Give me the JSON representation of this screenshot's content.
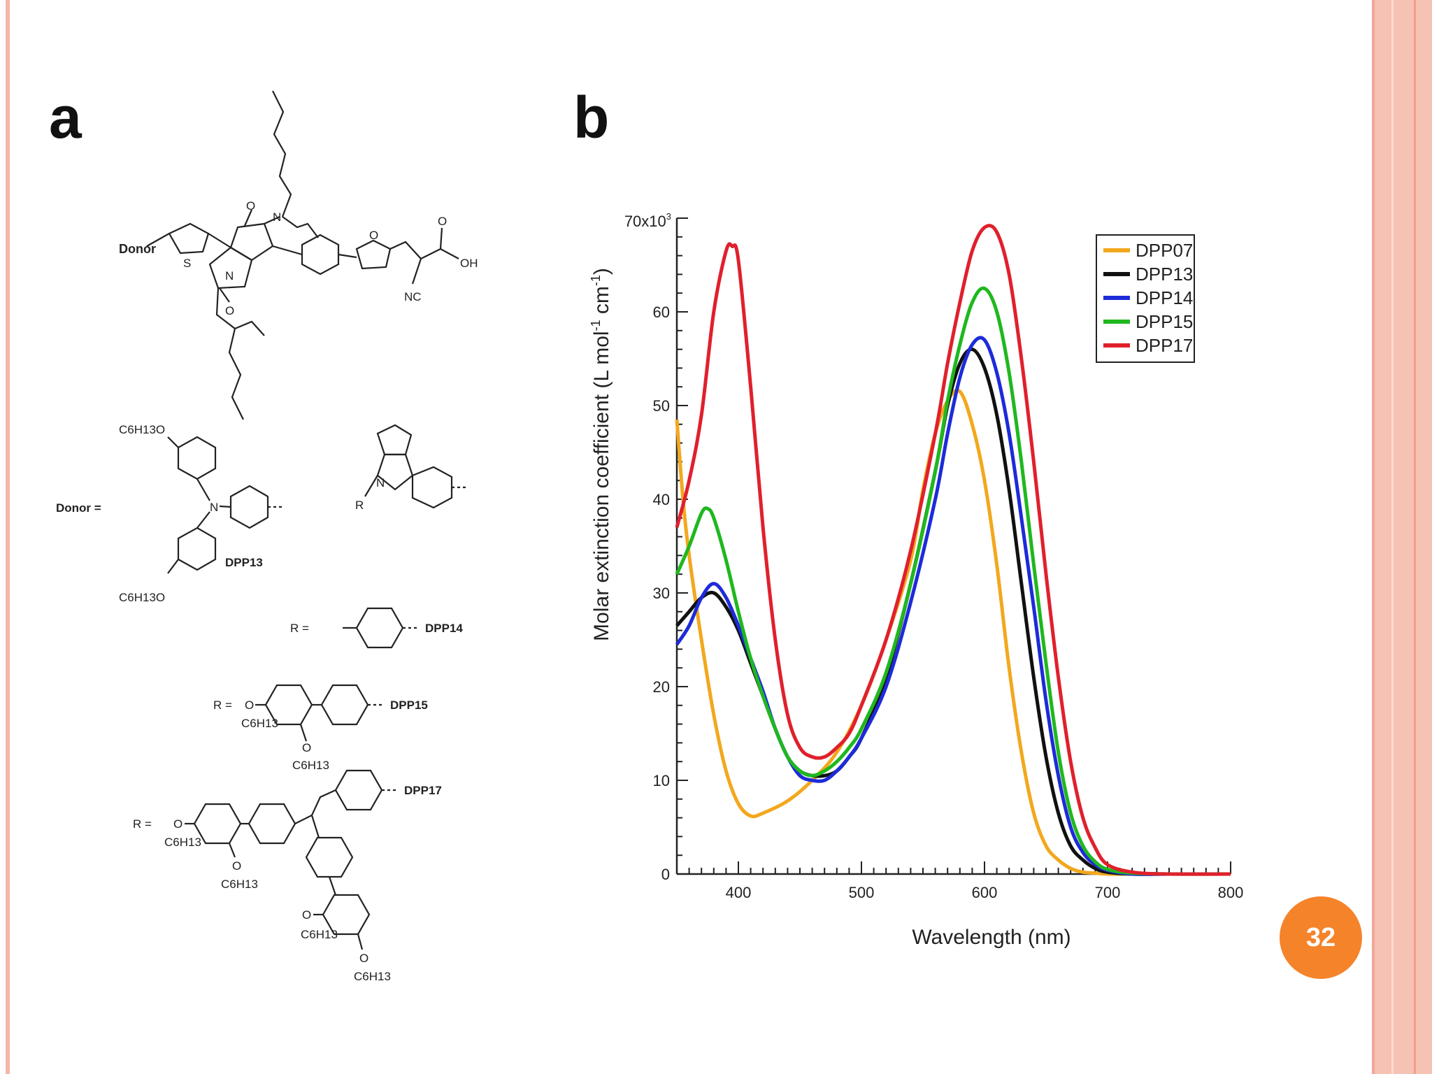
{
  "panels": {
    "a_label": "a",
    "b_label": "b"
  },
  "page_number": "32",
  "structure": {
    "donor_label": "Donor",
    "donor_eq": "Donor =",
    "o_label": "O",
    "n_label": "N",
    "s_label": "S",
    "nc_label": "NC",
    "oh_label": "OH",
    "r_label": "R",
    "hexyloxy": "C6H13O",
    "c6h13": "C6H13",
    "dpp13": "DPP13",
    "r_eq": "R =",
    "dpp14": "DPP14",
    "dpp15": "DPP15",
    "dpp17": "DPP17"
  },
  "chart_data": {
    "type": "line",
    "xlabel": "Wavelength (nm)",
    "ylabel": "Molar extinction coefficient (L mol-1 cm-1)",
    "y_multiplier_label": "70x10",
    "y_multiplier_exp": "3",
    "xlim": [
      350,
      800
    ],
    "ylim": [
      0,
      70
    ],
    "xticks": [
      "400",
      "500",
      "600",
      "700",
      "800"
    ],
    "yticks": [
      "0",
      "10",
      "20",
      "30",
      "40",
      "50",
      "60"
    ],
    "legend_position": "top-right",
    "series": [
      {
        "name": "DPP07",
        "color": "#f2a81d",
        "x": [
          350,
          355,
          360,
          370,
          380,
          390,
          400,
          410,
          420,
          440,
          460,
          480,
          500,
          520,
          540,
          550,
          560,
          570,
          580,
          590,
          600,
          610,
          620,
          630,
          640,
          650,
          660,
          670,
          680,
          690,
          700,
          720,
          750,
          800
        ],
        "y": [
          48.5,
          40,
          34,
          25,
          17,
          11,
          7.5,
          6.2,
          6.5,
          7.8,
          10,
          13,
          18,
          25,
          33.5,
          41,
          47,
          50.5,
          51.5,
          48,
          42,
          33,
          22,
          13,
          6.5,
          3,
          1.5,
          0.6,
          0.2,
          0.1,
          0,
          0,
          0,
          0
        ]
      },
      {
        "name": "DPP13",
        "color": "#111111",
        "x": [
          350,
          360,
          370,
          380,
          390,
          400,
          410,
          420,
          430,
          440,
          450,
          460,
          470,
          480,
          490,
          500,
          520,
          540,
          560,
          570,
          580,
          590,
          600,
          610,
          620,
          630,
          640,
          650,
          660,
          670,
          680,
          690,
          700,
          720,
          750,
          800
        ],
        "y": [
          26.5,
          28,
          29.5,
          30,
          28.5,
          26,
          22.5,
          19,
          15.5,
          12.5,
          11,
          10.5,
          10.5,
          11,
          12.5,
          14.5,
          21,
          31,
          43,
          50,
          54.5,
          56,
          54,
          49,
          41,
          31,
          21,
          12.5,
          6.5,
          3,
          1.5,
          0.6,
          0.2,
          0,
          0,
          0
        ]
      },
      {
        "name": "DPP14",
        "color": "#1d2bd9",
        "x": [
          350,
          360,
          370,
          380,
          390,
          400,
          410,
          420,
          430,
          440,
          450,
          460,
          470,
          480,
          490,
          500,
          520,
          540,
          560,
          570,
          580,
          590,
          600,
          610,
          620,
          630,
          640,
          650,
          660,
          670,
          680,
          690,
          700,
          720,
          750,
          800
        ],
        "y": [
          24.5,
          26.5,
          29.5,
          31,
          29.5,
          26.5,
          23,
          19.5,
          15.5,
          12.5,
          10.5,
          10,
          10,
          11,
          12.5,
          14.5,
          20,
          29,
          40,
          47,
          53,
          56.5,
          57,
          53.5,
          47,
          38,
          28.5,
          18.5,
          10.5,
          5,
          2.3,
          1,
          0.4,
          0,
          0,
          0
        ]
      },
      {
        "name": "DPP15",
        "color": "#1fb81f",
        "x": [
          350,
          360,
          370,
          375,
          380,
          390,
          400,
          410,
          420,
          430,
          440,
          450,
          460,
          470,
          480,
          490,
          500,
          520,
          540,
          560,
          570,
          580,
          590,
          600,
          610,
          620,
          630,
          640,
          650,
          660,
          670,
          680,
          690,
          700,
          720,
          750,
          800
        ],
        "y": [
          32,
          35,
          38.5,
          39,
          38,
          33.5,
          28,
          23,
          19,
          15.5,
          12.5,
          11,
          10.5,
          11,
          12,
          13.5,
          15.5,
          21.5,
          31,
          43,
          50.5,
          56.5,
          61,
          62.5,
          60,
          53.5,
          44,
          33,
          22.5,
          13,
          6.5,
          3,
          1.3,
          0.5,
          0.1,
          0,
          0
        ]
      },
      {
        "name": "DPP17",
        "color": "#e0202c",
        "x": [
          350,
          360,
          370,
          380,
          390,
          395,
          400,
          410,
          420,
          430,
          440,
          450,
          460,
          470,
          480,
          490,
          500,
          520,
          540,
          560,
          570,
          580,
          590,
          600,
          610,
          620,
          630,
          640,
          650,
          660,
          670,
          680,
          690,
          700,
          720,
          750,
          800
        ],
        "y": [
          37,
          42,
          49,
          60,
          66.5,
          67,
          65.5,
          52,
          37,
          25,
          17,
          13.5,
          12.5,
          12.5,
          13.5,
          15,
          18,
          25,
          34.5,
          47,
          54.5,
          61,
          66.5,
          69,
          68.5,
          64,
          55,
          44,
          32,
          21,
          12,
          6,
          2.8,
          1,
          0.2,
          0,
          0
        ]
      }
    ]
  }
}
